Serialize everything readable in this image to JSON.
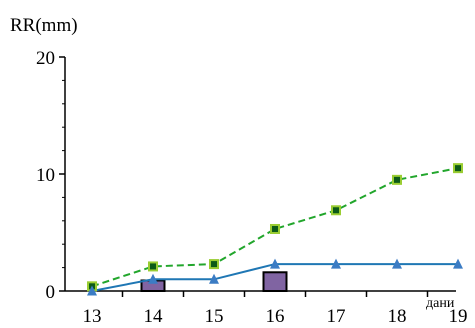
{
  "chart_data": {
    "type": "line",
    "ylabel": "RR(mm)",
    "xlabel": "дани",
    "categories": [
      "13",
      "14",
      "15",
      "16",
      "17",
      "18",
      "19"
    ],
    "x": [
      13,
      14,
      15,
      16,
      17,
      18,
      19
    ],
    "ylim": [
      0,
      20
    ],
    "xlim": [
      13,
      19
    ],
    "yticks": [
      "0",
      "10",
      "20"
    ],
    "grid": false,
    "legend": "none",
    "series": [
      {
        "type": "line",
        "style": "dashed",
        "marker": "square",
        "color": "#22a62c",
        "marker_color": "#9acd32",
        "values": [
          0.4,
          2.1,
          2.3,
          5.3,
          6.9,
          9.5,
          10.5
        ]
      },
      {
        "type": "line",
        "style": "solid",
        "marker": "triangle",
        "color": "#1f77b4",
        "marker_color": "#3b7cc4",
        "values": [
          0,
          1,
          1,
          2.3,
          2.3,
          2.3,
          2.3
        ]
      },
      {
        "type": "bar",
        "color": "#8064a2",
        "x": [
          14,
          16
        ],
        "values": [
          0.9,
          1.6
        ]
      }
    ]
  }
}
